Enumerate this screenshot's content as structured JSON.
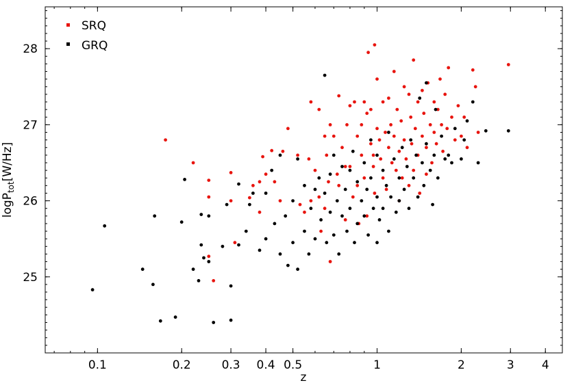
{
  "chart_data": {
    "type": "scatter",
    "title": "",
    "xlabel": "z",
    "ylabel": "logP",
    "ylabel_subscript": "tot",
    "ylabel_unit": "[W/Hz]",
    "x_scale": "log",
    "xlim": [
      0.065,
      4.6
    ],
    "ylim": [
      24.0,
      28.55
    ],
    "x_ticks": [
      {
        "value": 0.1,
        "label": "0.1"
      },
      {
        "value": 0.2,
        "label": "0.2"
      },
      {
        "value": 0.3,
        "label": "0.3"
      },
      {
        "value": 0.4,
        "label": "0.4"
      },
      {
        "value": 0.5,
        "label": "0.5"
      },
      {
        "value": 1,
        "label": "1"
      },
      {
        "value": 2,
        "label": "2"
      },
      {
        "value": 3,
        "label": "3"
      },
      {
        "value": 4,
        "label": "4"
      }
    ],
    "y_ticks": [
      {
        "value": 25,
        "label": "25"
      },
      {
        "value": 26,
        "label": "26"
      },
      {
        "value": 27,
        "label": "27"
      },
      {
        "value": 28,
        "label": "28"
      }
    ],
    "grid": false,
    "legend_position": "top-left",
    "series": [
      {
        "name": "SRQ",
        "color": "#e8150f",
        "points": [
          [
            0.175,
            26.8
          ],
          [
            0.22,
            26.5
          ],
          [
            0.25,
            26.27
          ],
          [
            0.25,
            26.05
          ],
          [
            0.25,
            25.27
          ],
          [
            0.26,
            24.95
          ],
          [
            0.3,
            26.37
          ],
          [
            0.3,
            26.0
          ],
          [
            0.31,
            25.45
          ],
          [
            0.35,
            26.04
          ],
          [
            0.36,
            26.2
          ],
          [
            0.38,
            26.25
          ],
          [
            0.38,
            25.85
          ],
          [
            0.39,
            26.58
          ],
          [
            0.4,
            26.35
          ],
          [
            0.42,
            26.66
          ],
          [
            0.43,
            26.25
          ],
          [
            0.45,
            26.0
          ],
          [
            0.46,
            26.65
          ],
          [
            0.48,
            26.95
          ],
          [
            0.52,
            26.6
          ],
          [
            0.53,
            25.95
          ],
          [
            0.55,
            25.85
          ],
          [
            0.57,
            26.55
          ],
          [
            0.58,
            27.3
          ],
          [
            0.58,
            26.0
          ],
          [
            0.6,
            26.4
          ],
          [
            0.62,
            27.2
          ],
          [
            0.62,
            26.05
          ],
          [
            0.63,
            25.6
          ],
          [
            0.65,
            26.85
          ],
          [
            0.65,
            25.9
          ],
          [
            0.66,
            26.6
          ],
          [
            0.67,
            26.25
          ],
          [
            0.68,
            27.0
          ],
          [
            0.68,
            25.2
          ],
          [
            0.7,
            26.85
          ],
          [
            0.72,
            26.35
          ],
          [
            0.73,
            27.38
          ],
          [
            0.73,
            26.2
          ],
          [
            0.75,
            26.7
          ],
          [
            0.77,
            26.45
          ],
          [
            0.77,
            25.75
          ],
          [
            0.78,
            27.0
          ],
          [
            0.8,
            27.25
          ],
          [
            0.8,
            26.45
          ],
          [
            0.82,
            26.05
          ],
          [
            0.83,
            27.3
          ],
          [
            0.85,
            26.85
          ],
          [
            0.85,
            26.2
          ],
          [
            0.86,
            25.7
          ],
          [
            0.88,
            27.0
          ],
          [
            0.88,
            26.6
          ],
          [
            0.9,
            27.3
          ],
          [
            0.9,
            26.3
          ],
          [
            0.92,
            27.15
          ],
          [
            0.92,
            25.8
          ],
          [
            0.93,
            27.95
          ],
          [
            0.95,
            27.2
          ],
          [
            0.95,
            26.75
          ],
          [
            0.97,
            26.6
          ],
          [
            0.97,
            26.45
          ],
          [
            0.98,
            28.05
          ],
          [
            0.98,
            26.1
          ],
          [
            1.0,
            27.6
          ],
          [
            1.0,
            26.95
          ],
          [
            1.02,
            26.8
          ],
          [
            1.03,
            26.55
          ],
          [
            1.05,
            27.3
          ],
          [
            1.05,
            26.3
          ],
          [
            1.07,
            26.9
          ],
          [
            1.08,
            26.15
          ],
          [
            1.1,
            27.35
          ],
          [
            1.1,
            26.7
          ],
          [
            1.12,
            27.0
          ],
          [
            1.13,
            26.5
          ],
          [
            1.15,
            27.7
          ],
          [
            1.15,
            26.85
          ],
          [
            1.17,
            26.4
          ],
          [
            1.18,
            27.2
          ],
          [
            1.2,
            26.65
          ],
          [
            1.2,
            26.0
          ],
          [
            1.22,
            27.05
          ],
          [
            1.23,
            26.3
          ],
          [
            1.25,
            27.5
          ],
          [
            1.25,
            26.8
          ],
          [
            1.27,
            26.55
          ],
          [
            1.3,
            27.4
          ],
          [
            1.3,
            26.2
          ],
          [
            1.32,
            27.1
          ],
          [
            1.33,
            26.75
          ],
          [
            1.35,
            27.85
          ],
          [
            1.35,
            26.4
          ],
          [
            1.37,
            26.95
          ],
          [
            1.4,
            27.3
          ],
          [
            1.4,
            26.6
          ],
          [
            1.42,
            26.1
          ],
          [
            1.45,
            27.45
          ],
          [
            1.45,
            26.85
          ],
          [
            1.47,
            27.15
          ],
          [
            1.5,
            26.7
          ],
          [
            1.5,
            26.35
          ],
          [
            1.52,
            27.55
          ],
          [
            1.55,
            27.0
          ],
          [
            1.57,
            26.5
          ],
          [
            1.6,
            27.3
          ],
          [
            1.6,
            26.9
          ],
          [
            1.63,
            26.75
          ],
          [
            1.65,
            27.2
          ],
          [
            1.68,
            27.6
          ],
          [
            1.7,
            27.0
          ],
          [
            1.72,
            26.65
          ],
          [
            1.75,
            27.4
          ],
          [
            1.78,
            26.95
          ],
          [
            1.8,
            27.75
          ],
          [
            1.85,
            27.1
          ],
          [
            1.9,
            26.8
          ],
          [
            1.95,
            27.25
          ],
          [
            2.0,
            26.85
          ],
          [
            2.05,
            27.1
          ],
          [
            2.1,
            26.7
          ],
          [
            2.2,
            27.72
          ],
          [
            2.25,
            27.5
          ],
          [
            2.3,
            26.9
          ],
          [
            2.95,
            27.79
          ]
        ]
      },
      {
        "name": "GRQ",
        "color": "#000000",
        "points": [
          [
            0.096,
            24.83
          ],
          [
            0.106,
            25.67
          ],
          [
            0.145,
            25.1
          ],
          [
            0.158,
            24.9
          ],
          [
            0.16,
            25.8
          ],
          [
            0.168,
            24.42
          ],
          [
            0.19,
            24.47
          ],
          [
            0.2,
            25.72
          ],
          [
            0.205,
            26.28
          ],
          [
            0.22,
            25.1
          ],
          [
            0.23,
            24.95
          ],
          [
            0.235,
            25.82
          ],
          [
            0.235,
            25.42
          ],
          [
            0.24,
            25.25
          ],
          [
            0.25,
            25.8
          ],
          [
            0.25,
            25.2
          ],
          [
            0.26,
            24.4
          ],
          [
            0.28,
            25.4
          ],
          [
            0.29,
            25.95
          ],
          [
            0.3,
            24.88
          ],
          [
            0.3,
            24.43
          ],
          [
            0.32,
            26.22
          ],
          [
            0.32,
            25.42
          ],
          [
            0.34,
            25.6
          ],
          [
            0.35,
            25.95
          ],
          [
            0.36,
            26.1
          ],
          [
            0.38,
            25.35
          ],
          [
            0.4,
            26.1
          ],
          [
            0.4,
            25.5
          ],
          [
            0.42,
            26.4
          ],
          [
            0.43,
            25.7
          ],
          [
            0.45,
            26.6
          ],
          [
            0.45,
            25.3
          ],
          [
            0.47,
            25.8
          ],
          [
            0.48,
            25.15
          ],
          [
            0.5,
            26.0
          ],
          [
            0.5,
            25.45
          ],
          [
            0.52,
            26.55
          ],
          [
            0.52,
            25.1
          ],
          [
            0.55,
            26.2
          ],
          [
            0.55,
            25.6
          ],
          [
            0.57,
            25.3
          ],
          [
            0.58,
            25.9
          ],
          [
            0.6,
            26.15
          ],
          [
            0.6,
            25.5
          ],
          [
            0.62,
            26.3
          ],
          [
            0.63,
            25.75
          ],
          [
            0.65,
            27.65
          ],
          [
            0.65,
            26.1
          ],
          [
            0.66,
            25.45
          ],
          [
            0.68,
            26.35
          ],
          [
            0.68,
            25.85
          ],
          [
            0.7,
            26.6
          ],
          [
            0.7,
            25.55
          ],
          [
            0.72,
            26.0
          ],
          [
            0.73,
            25.3
          ],
          [
            0.75,
            26.45
          ],
          [
            0.75,
            25.8
          ],
          [
            0.77,
            26.15
          ],
          [
            0.78,
            25.6
          ],
          [
            0.8,
            26.4
          ],
          [
            0.8,
            25.9
          ],
          [
            0.82,
            26.65
          ],
          [
            0.83,
            25.45
          ],
          [
            0.85,
            26.25
          ],
          [
            0.85,
            25.7
          ],
          [
            0.88,
            26.0
          ],
          [
            0.9,
            26.5
          ],
          [
            0.9,
            25.8
          ],
          [
            0.92,
            26.15
          ],
          [
            0.93,
            25.55
          ],
          [
            0.95,
            26.8
          ],
          [
            0.95,
            26.3
          ],
          [
            0.97,
            25.9
          ],
          [
            1.0,
            26.6
          ],
          [
            1.0,
            26.05
          ],
          [
            1.0,
            25.45
          ],
          [
            1.02,
            25.75
          ],
          [
            1.05,
            26.4
          ],
          [
            1.05,
            25.9
          ],
          [
            1.08,
            26.2
          ],
          [
            1.1,
            26.9
          ],
          [
            1.1,
            25.6
          ],
          [
            1.12,
            26.05
          ],
          [
            1.15,
            26.55
          ],
          [
            1.17,
            25.85
          ],
          [
            1.2,
            26.3
          ],
          [
            1.2,
            26.0
          ],
          [
            1.23,
            26.7
          ],
          [
            1.25,
            26.15
          ],
          [
            1.28,
            26.45
          ],
          [
            1.3,
            25.9
          ],
          [
            1.32,
            26.8
          ],
          [
            1.35,
            26.3
          ],
          [
            1.38,
            26.6
          ],
          [
            1.4,
            26.05
          ],
          [
            1.42,
            27.35
          ],
          [
            1.45,
            26.5
          ],
          [
            1.47,
            26.2
          ],
          [
            1.5,
            27.55
          ],
          [
            1.5,
            26.75
          ],
          [
            1.55,
            26.4
          ],
          [
            1.58,
            25.95
          ],
          [
            1.6,
            26.6
          ],
          [
            1.62,
            27.2
          ],
          [
            1.65,
            26.3
          ],
          [
            1.7,
            26.85
          ],
          [
            1.75,
            26.55
          ],
          [
            1.8,
            26.6
          ],
          [
            1.85,
            26.5
          ],
          [
            1.9,
            26.95
          ],
          [
            2.0,
            26.55
          ],
          [
            2.05,
            26.8
          ],
          [
            2.1,
            27.05
          ],
          [
            2.2,
            27.3
          ],
          [
            2.3,
            26.5
          ],
          [
            2.45,
            26.92
          ],
          [
            2.95,
            26.92
          ]
        ]
      }
    ]
  }
}
